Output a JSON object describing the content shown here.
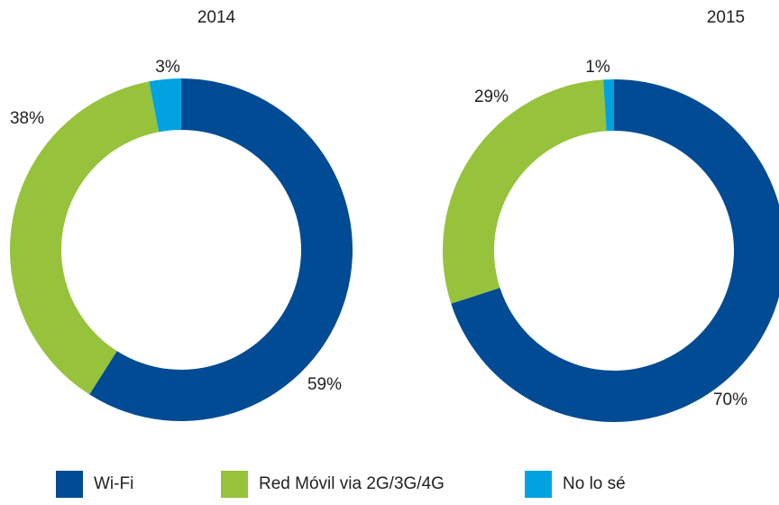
{
  "chart_data": [
    {
      "type": "pie",
      "title": "2014",
      "categories": [
        "Wi-Fi",
        "Red Móvil via 2G/3G/4G",
        "No lo sé"
      ],
      "values": [
        59,
        38,
        3
      ],
      "value_labels": [
        "59%",
        "38%",
        "3%"
      ],
      "colors": [
        "#004b93",
        "#97c23c",
        "#00a3e0"
      ]
    },
    {
      "type": "pie",
      "title": "2015",
      "categories": [
        "Wi-Fi",
        "Red Móvil via 2G/3G/4G",
        "No lo sé"
      ],
      "values": [
        70,
        29,
        1
      ],
      "value_labels": [
        "70%",
        "29%",
        "1%"
      ],
      "colors": [
        "#004b93",
        "#97c23c",
        "#00a3e0"
      ]
    }
  ]
}
